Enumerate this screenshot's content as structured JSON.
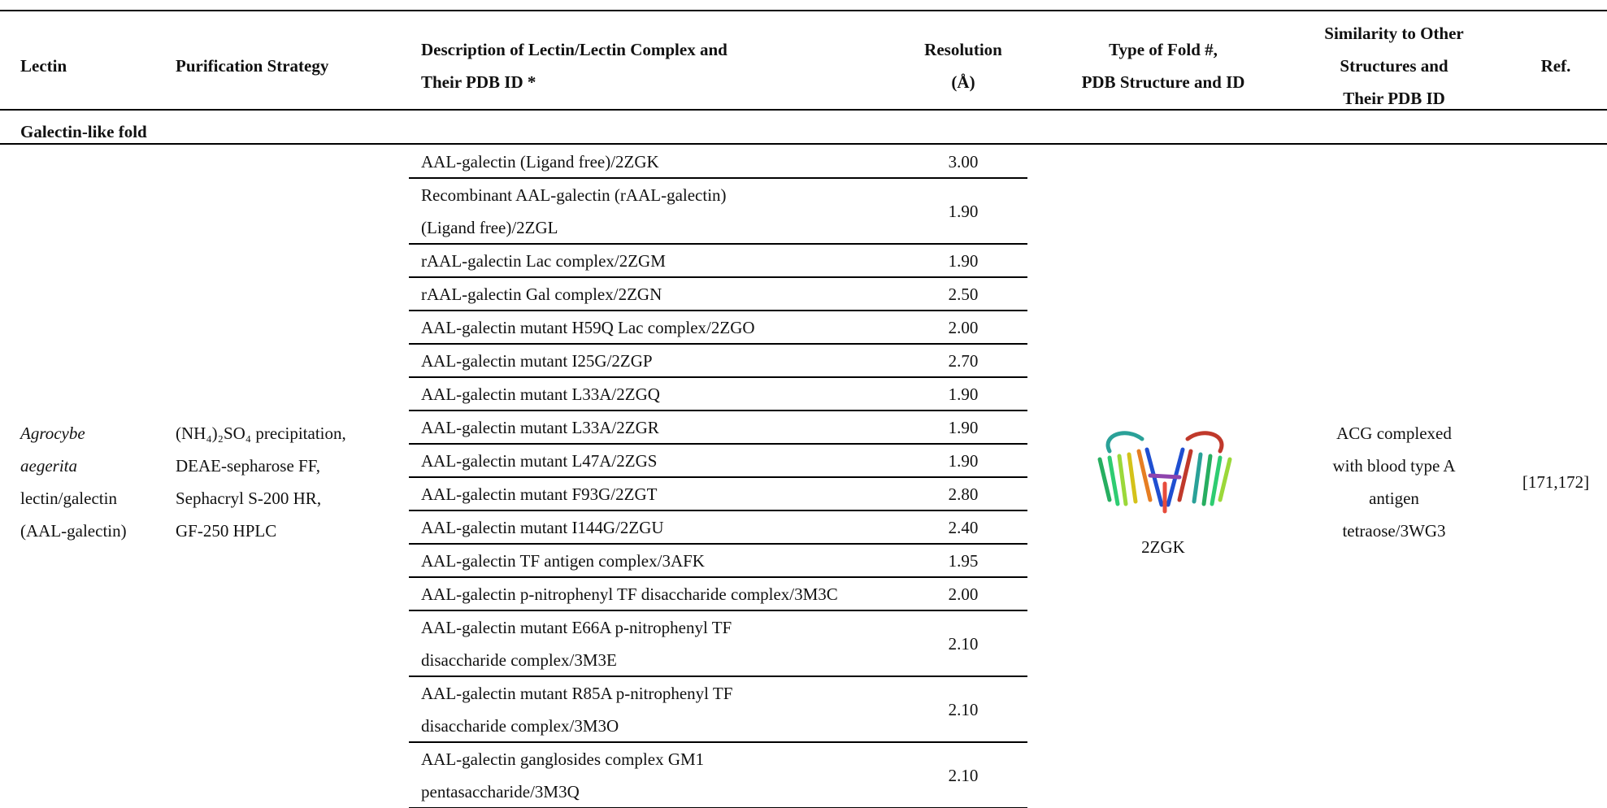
{
  "table": {
    "columns": [
      [
        "Lectin"
      ],
      [
        "Purification Strategy"
      ],
      [
        "Description of Lectin/Lectin Complex and",
        "Their PDB ID *"
      ],
      [
        "Resolution",
        "(Å)"
      ],
      [
        "Type of Fold #,",
        "PDB Structure and ID"
      ],
      [
        "Similarity to Other",
        "Structures and",
        "Their PDB ID"
      ],
      [
        "Ref."
      ]
    ],
    "sections": [
      {
        "title": "Galectin-like fold",
        "rows": [
          {
            "lectin": [
              "Agrocybe",
              "aegerita",
              "lectin/galectin",
              "(AAL-galectin)"
            ],
            "purification": [
              "(NH₄)₂SO₄ precipitation,",
              "DEAE-sepharose FF,",
              "Sephacryl S-200 HR,",
              "GF-250 HPLC"
            ],
            "entries": [
              {
                "description": [
                  "AAL-galectin (Ligand free)/2ZGK"
                ],
                "resolution": "3.00"
              },
              {
                "description": [
                  "Recombinant AAL-galectin (rAAL-galectin)",
                  "(Ligand free)/2ZGL"
                ],
                "resolution": "1.90"
              },
              {
                "description": [
                  "rAAL-galectin Lac complex/2ZGM"
                ],
                "resolution": "1.90"
              },
              {
                "description": [
                  "rAAL-galectin Gal complex/2ZGN"
                ],
                "resolution": "2.50"
              },
              {
                "description": [
                  "AAL-galectin mutant H59Q Lac complex/2ZGO"
                ],
                "resolution": "2.00"
              },
              {
                "description": [
                  "AAL-galectin mutant I25G/2ZGP"
                ],
                "resolution": "2.70"
              },
              {
                "description": [
                  "AAL-galectin mutant L33A/2ZGQ"
                ],
                "resolution": "1.90"
              },
              {
                "description": [
                  "AAL-galectin mutant L33A/2ZGR"
                ],
                "resolution": "1.90"
              },
              {
                "description": [
                  "AAL-galectin mutant L47A/2ZGS"
                ],
                "resolution": "1.90"
              },
              {
                "description": [
                  "AAL-galectin mutant F93G/2ZGT"
                ],
                "resolution": "2.80"
              },
              {
                "description": [
                  "AAL-galectin mutant I144G/2ZGU"
                ],
                "resolution": "2.40"
              },
              {
                "description": [
                  "AAL-galectin TF antigen complex/3AFK"
                ],
                "resolution": "1.95"
              },
              {
                "description": [
                  "AAL-galectin p-nitrophenyl TF disaccharide complex/3M3C"
                ],
                "resolution": "2.00"
              },
              {
                "description": [
                  "AAL-galectin mutant E66A p-nitrophenyl TF",
                  "disaccharide complex/3M3E"
                ],
                "resolution": "2.10"
              },
              {
                "description": [
                  "AAL-galectin mutant R85A p-nitrophenyl TF",
                  "disaccharide complex/3M3O"
                ],
                "resolution": "2.10"
              },
              {
                "description": [
                  "AAL-galectin ganglosides complex GM1",
                  "pentasaccharide/3M3Q"
                ],
                "resolution": "2.10"
              }
            ],
            "structure_id": "2ZGK",
            "similarity": [
              "ACG complexed",
              "with blood type A",
              "antigen",
              "tetraose/3WG3"
            ],
            "ref": "[171,172]"
          }
        ]
      }
    ]
  }
}
